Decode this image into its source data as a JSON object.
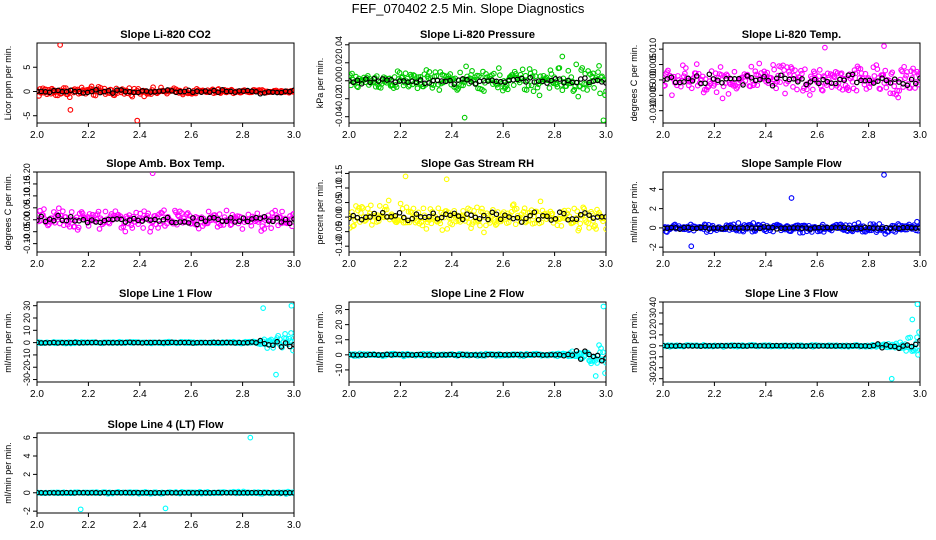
{
  "page": {
    "title": "FEF_070402  2.5 Min. Slope Diagnostics"
  },
  "chart_data": [
    {
      "type": "scatter",
      "title": "Slope Li-820 CO2",
      "xlabel": "",
      "ylabel": "Licor ppm per min.",
      "xlim": [
        2.0,
        3.0
      ],
      "ylim": [
        -6.5,
        10
      ],
      "xticks": [
        2.0,
        2.2,
        2.4,
        2.6,
        2.8,
        3.0
      ],
      "yticks": [
        -5,
        0,
        5
      ],
      "color": "#ff0000",
      "spread": 1.2,
      "spread_end": 0.25,
      "outliers": [
        [
          2.09,
          9.6
        ],
        [
          2.39,
          -6.0
        ],
        [
          2.13,
          -3.8
        ]
      ]
    },
    {
      "type": "scatter",
      "title": "Slope Li-820 Pressure",
      "xlabel": "",
      "ylabel": "kPa per min.",
      "xlim": [
        2.0,
        3.0
      ],
      "ylim": [
        -0.047,
        0.042
      ],
      "xticks": [
        2.0,
        2.2,
        2.4,
        2.6,
        2.8,
        3.0
      ],
      "yticks": [
        -0.04,
        -0.02,
        0.0,
        0.02,
        0.04
      ],
      "color": "#00cc00",
      "spread": 0.009,
      "spread_end": 0.018,
      "outliers": [
        [
          2.45,
          -0.041
        ],
        [
          2.99,
          -0.044
        ],
        [
          2.83,
          0.027
        ]
      ]
    },
    {
      "type": "scatter",
      "title": "Slope Li-820 Temp.",
      "xlabel": "",
      "ylabel": "degrees C per min.",
      "xlim": [
        2.0,
        3.0
      ],
      "ylim": [
        -0.014,
        0.012
      ],
      "xticks": [
        2.0,
        2.2,
        2.4,
        2.6,
        2.8,
        3.0
      ],
      "yticks": [
        -0.01,
        -0.005,
        0.0,
        0.005,
        0.01
      ],
      "color": "#ff00ff",
      "spread": 0.005,
      "spread_end": 0.005,
      "outliers": [
        [
          2.86,
          0.011
        ],
        [
          2.63,
          0.0105
        ]
      ]
    },
    {
      "type": "scatter",
      "title": "Slope Amb. Box Temp.",
      "xlabel": "",
      "ylabel": "degrees C per min.",
      "xlim": [
        2.0,
        3.0
      ],
      "ylim": [
        -0.135,
        0.2
      ],
      "xticks": [
        2.0,
        2.2,
        2.4,
        2.6,
        2.8,
        3.0
      ],
      "yticks": [
        -0.1,
        -0.05,
        0.0,
        0.05,
        0.1,
        0.15,
        0.2
      ],
      "color": "#ff00ff",
      "spread": 0.045,
      "spread_end": 0.04,
      "outliers": [
        [
          2.45,
          0.195
        ]
      ]
    },
    {
      "type": "scatter",
      "title": "Slope Gas Stream RH",
      "xlabel": "",
      "ylabel": "percent per min.",
      "xlim": [
        2.0,
        3.0
      ],
      "ylim": [
        -0.12,
        0.155
      ],
      "xticks": [
        2.0,
        2.2,
        2.4,
        2.6,
        2.8,
        3.0
      ],
      "yticks": [
        -0.1,
        -0.05,
        0.0,
        0.05,
        0.1,
        0.15
      ],
      "color": "#ffff00",
      "spread": 0.05,
      "spread_end": 0.04,
      "outliers": [
        [
          2.22,
          0.14
        ],
        [
          2.38,
          0.13
        ]
      ]
    },
    {
      "type": "scatter",
      "title": "Slope Sample Flow",
      "xlabel": "",
      "ylabel": "ml/min per min.",
      "xlim": [
        2.0,
        3.0
      ],
      "ylim": [
        -2.5,
        5.8
      ],
      "xticks": [
        2.0,
        2.2,
        2.4,
        2.6,
        2.8,
        3.0
      ],
      "yticks": [
        -2,
        0,
        2,
        4
      ],
      "color": "#0000ff",
      "spread": 0.35,
      "spread_end": 0.6,
      "outliers": [
        [
          2.5,
          3.1
        ],
        [
          2.86,
          5.5
        ],
        [
          2.11,
          -1.9
        ]
      ]
    },
    {
      "type": "scatter",
      "title": "Slope Line 1 Flow",
      "xlabel": "",
      "ylabel": "ml/min per min.",
      "xlim": [
        2.0,
        3.0
      ],
      "ylim": [
        -32,
        33
      ],
      "xticks": [
        2.0,
        2.2,
        2.4,
        2.6,
        2.8,
        3.0
      ],
      "yticks": [
        -30,
        -20,
        -10,
        0,
        10,
        20,
        30
      ],
      "color": "#00ffff",
      "spread": 0.7,
      "spread_end": 14,
      "outliers": [
        [
          2.88,
          28
        ],
        [
          2.99,
          30
        ],
        [
          2.93,
          -26
        ]
      ]
    },
    {
      "type": "scatter",
      "title": "Slope Line 2 Flow",
      "xlabel": "",
      "ylabel": "ml/min per min.",
      "xlim": [
        2.0,
        3.0
      ],
      "ylim": [
        -18,
        35
      ],
      "xticks": [
        2.0,
        2.2,
        2.4,
        2.6,
        2.8,
        3.0
      ],
      "yticks": [
        -10,
        0,
        10,
        20,
        30
      ],
      "color": "#00ffff",
      "spread": 0.8,
      "spread_end": 11,
      "outliers": [
        [
          2.99,
          32
        ],
        [
          2.96,
          -14
        ]
      ]
    },
    {
      "type": "scatter",
      "title": "Slope Line 3 Flow",
      "xlabel": "",
      "ylabel": "ml/min per min.",
      "xlim": [
        2.0,
        3.0
      ],
      "ylim": [
        -33,
        40
      ],
      "xticks": [
        2.0,
        2.2,
        2.4,
        2.6,
        2.8,
        3.0
      ],
      "yticks": [
        -30,
        -20,
        -10,
        0,
        10,
        20,
        30,
        40
      ],
      "color": "#00ffff",
      "spread": 0.8,
      "spread_end": 13,
      "outliers": [
        [
          2.99,
          38
        ],
        [
          2.89,
          -30
        ],
        [
          2.97,
          24
        ]
      ]
    },
    {
      "type": "scatter",
      "title": "Slope Line 4 (LT) Flow",
      "xlabel": "",
      "ylabel": "ml/min per min.",
      "xlim": [
        2.0,
        3.0
      ],
      "ylim": [
        -2.2,
        6.5
      ],
      "xticks": [
        2.0,
        2.2,
        2.4,
        2.6,
        2.8,
        3.0
      ],
      "yticks": [
        -2,
        0,
        2,
        4,
        6
      ],
      "color": "#00ffff",
      "spread": 0.05,
      "spread_end": 0.15,
      "outliers": [
        [
          2.83,
          6.0
        ],
        [
          2.17,
          -1.8
        ],
        [
          2.5,
          -1.7
        ]
      ]
    }
  ]
}
